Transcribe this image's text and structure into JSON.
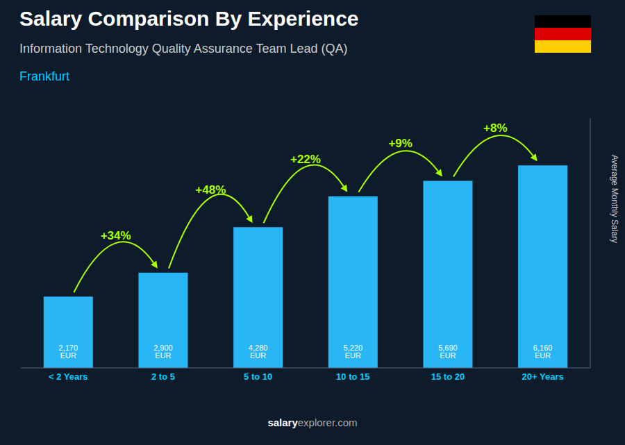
{
  "chart_data": {
    "type": "bar",
    "title": "Salary Comparison By Experience",
    "subtitle": "Information Technology Quality Assurance Team Lead (QA)",
    "city": "Frankfurt",
    "ylabel": "Average Monthly Salary",
    "footer": [
      "salary",
      "explorer.com"
    ],
    "categories": [
      "< 2 Years",
      "2 to 5",
      "5 to 10",
      "10 to 15",
      "15 to 20",
      "20+ Years"
    ],
    "values": [
      2170,
      2900,
      4280,
      5220,
      5690,
      6160
    ],
    "value_labels": [
      "2,170 EUR",
      "2,900 EUR",
      "4,280 EUR",
      "5,220 EUR",
      "5,690 EUR",
      "6,160 EUR"
    ],
    "data_labels": true,
    "color": "#29b6f6",
    "ylim": [
      0,
      7600
    ],
    "tick_labels": "x",
    "grid": false,
    "annotations": [
      {
        "from": "< 2 Years",
        "to": "2 to 5",
        "text": "+34%"
      },
      {
        "from": "2 to 5",
        "to": "5 to 10",
        "text": "+48%"
      },
      {
        "from": "5 to 10",
        "to": "10 to 15",
        "text": "+22%"
      },
      {
        "from": "10 to 15",
        "to": "15 to 20",
        "text": "+9%"
      },
      {
        "from": "15 to 20",
        "to": "20+ Years",
        "text": "+8%"
      }
    ]
  }
}
